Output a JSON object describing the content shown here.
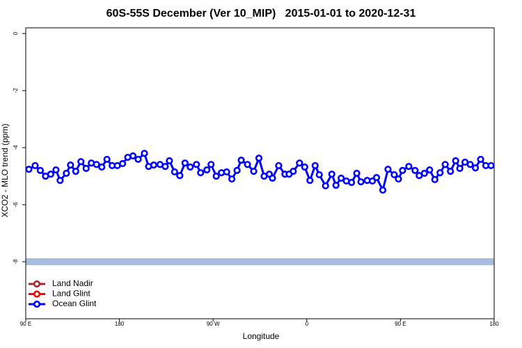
{
  "chart_data": {
    "type": "line",
    "title": "60S-55S December (Ver 10_MIP)   2015-01-01 to 2020-12-31",
    "x_label": "Longitude",
    "y_label": "XCO2 - MLO trend (ppm)",
    "xlim": [
      -270,
      180
    ],
    "xticks": [
      {
        "value": -270,
        "label": "90 E"
      },
      {
        "value": -180,
        "label": "180"
      },
      {
        "value": -90,
        "label": "90 W"
      },
      0,
      {
        "value": 90,
        "label": "90 E"
      },
      {
        "value": 180,
        "label": "180"
      }
    ],
    "ylim": [
      -10,
      0.2
    ],
    "yticks": [
      0,
      -2,
      -4,
      -6,
      -8
    ],
    "band": {
      "value": -8,
      "color": "#a7bddf"
    },
    "legend": [
      {
        "name": "Land Nadir",
        "color": "#a0282d"
      },
      {
        "name": "Land Glint",
        "color": "#ff0000"
      },
      {
        "name": "Ocean Glint",
        "color": "#0000ff"
      }
    ],
    "series": [
      {
        "color": "#0000ff",
        "x": [
          -267,
          -261,
          -256,
          -251,
          -246,
          -241,
          -237,
          -231,
          -227,
          -222,
          -217,
          -212,
          -207,
          -202,
          -197,
          -192,
          -187,
          -182,
          -177,
          -172,
          -167,
          -162,
          -156,
          -152,
          -147,
          -141,
          -136,
          -132,
          -127,
          -122,
          -117,
          -112,
          -106,
          -102,
          -96,
          -92,
          -87,
          -82,
          -77,
          -72,
          -67,
          -63,
          -57,
          -51,
          -46,
          -41,
          -36,
          -33,
          -27,
          -21,
          -17,
          -13,
          -7,
          -2,
          3,
          8,
          12,
          18,
          24,
          28,
          33,
          38,
          43,
          48,
          52,
          58,
          63,
          67,
          73,
          78,
          84,
          88,
          92,
          98,
          104,
          108,
          113,
          118,
          123,
          128,
          133,
          138,
          143,
          147,
          152,
          157,
          162,
          167,
          172,
          177
        ],
        "values": [
          -4.76,
          -4.63,
          -4.8,
          -5.0,
          -4.93,
          -4.78,
          -5.15,
          -4.9,
          -4.61,
          -4.83,
          -4.49,
          -4.73,
          -4.54,
          -4.59,
          -4.68,
          -4.41,
          -4.63,
          -4.63,
          -4.56,
          -4.34,
          -4.29,
          -4.41,
          -4.2,
          -4.66,
          -4.61,
          -4.59,
          -4.66,
          -4.46,
          -4.85,
          -4.98,
          -4.54,
          -4.68,
          -4.59,
          -4.88,
          -4.78,
          -4.59,
          -5.0,
          -4.88,
          -4.85,
          -5.1,
          -4.8,
          -4.44,
          -4.59,
          -4.83,
          -4.37,
          -5.0,
          -4.93,
          -5.07,
          -4.63,
          -4.93,
          -4.93,
          -4.83,
          -4.54,
          -4.68,
          -5.15,
          -4.63,
          -4.95,
          -5.34,
          -4.93,
          -5.32,
          -5.07,
          -5.17,
          -5.22,
          -4.9,
          -5.2,
          -5.15,
          -5.17,
          -5.05,
          -5.49,
          -4.76,
          -4.95,
          -5.1,
          -4.8,
          -4.66,
          -4.8,
          -4.98,
          -4.9,
          -4.78,
          -5.12,
          -4.88,
          -4.59,
          -4.83,
          -4.46,
          -4.73,
          -4.51,
          -4.59,
          -4.71,
          -4.41,
          -4.63,
          -4.63
        ]
      }
    ]
  }
}
